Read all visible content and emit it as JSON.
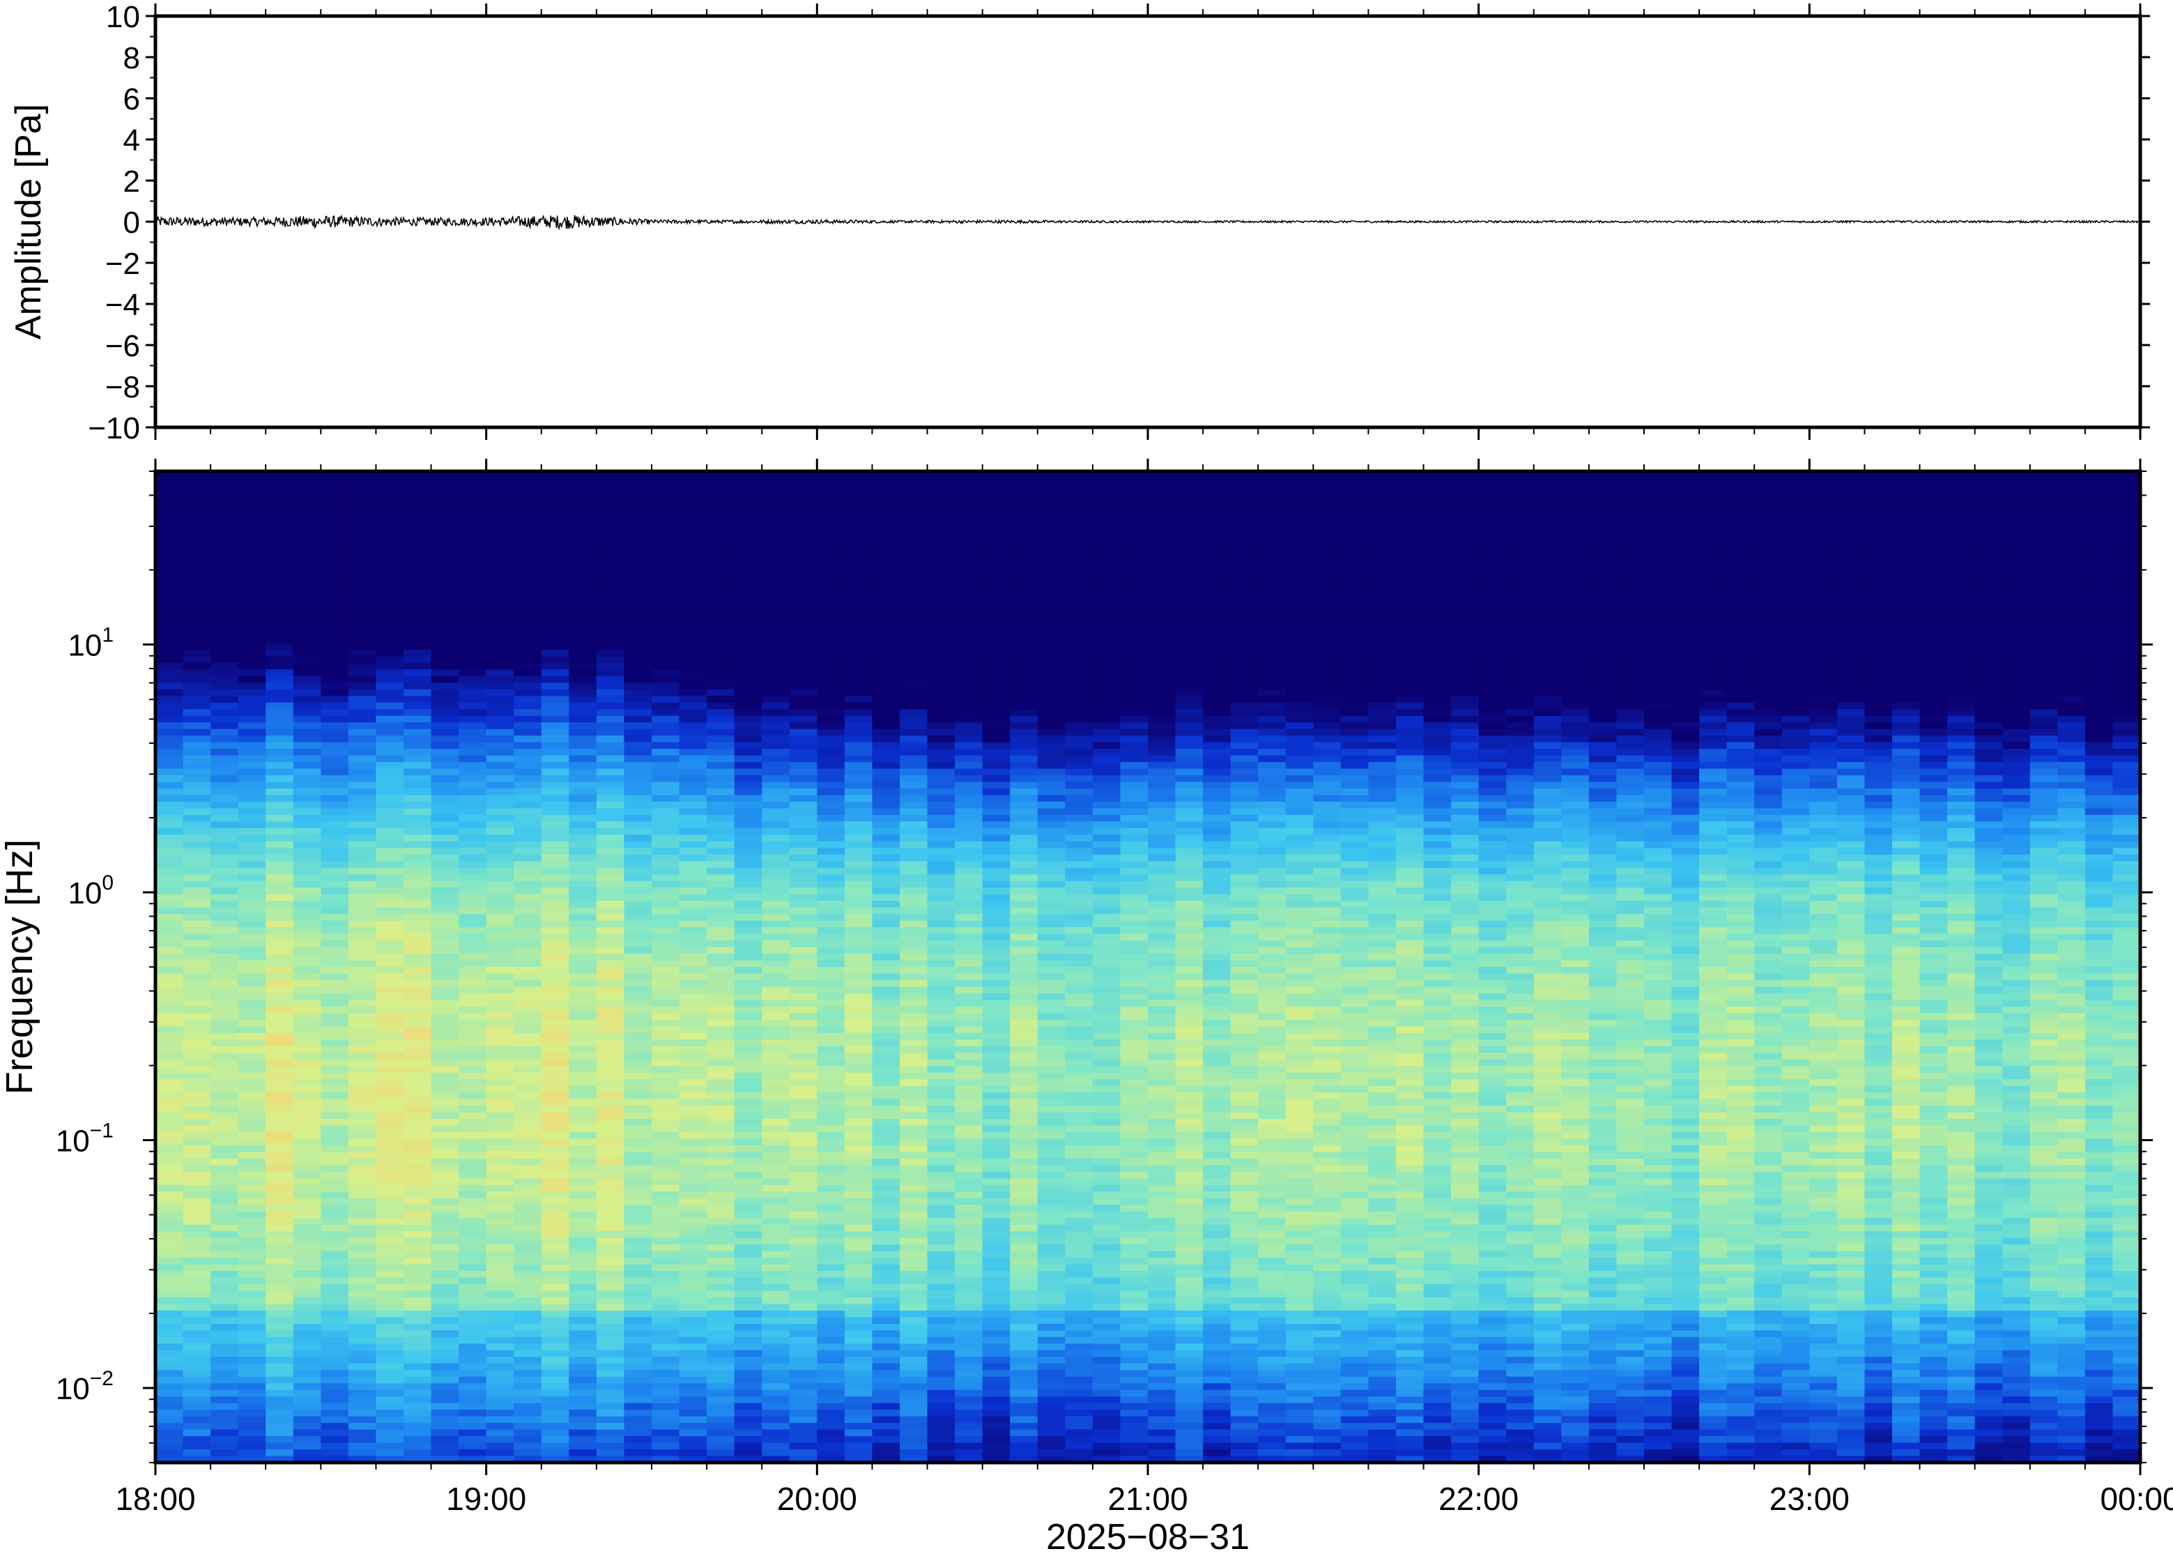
{
  "chart_data": [
    {
      "type": "line",
      "panel": "waveform",
      "ylabel": "Amplitude [Pa]",
      "ylim": [
        -10,
        10
      ],
      "yticks": [
        10,
        8,
        6,
        4,
        2,
        0,
        -2,
        -4,
        -6,
        -8,
        -10
      ],
      "ytick_labels": [
        "10",
        "8",
        "6",
        "4",
        "2",
        "0",
        "−2",
        "−4",
        "−6",
        "−8",
        "−10"
      ],
      "x_start": "18:00",
      "x_end": "00:00",
      "trace_color": "#000000",
      "series": [
        {
          "x": [
            "18:00",
            "18:15",
            "18:30",
            "18:45",
            "19:00",
            "19:15",
            "19:30",
            "19:45",
            "20:00",
            "20:15",
            "20:30",
            "20:45",
            "21:00",
            "21:15",
            "21:30",
            "21:45",
            "22:00",
            "22:15",
            "22:30",
            "22:45",
            "23:00",
            "23:15",
            "23:30",
            "23:45",
            "00:00"
          ],
          "envelope": [
            0.25,
            0.2,
            0.3,
            0.2,
            0.2,
            0.35,
            0.1,
            0.08,
            0.1,
            0.06,
            0.08,
            0.06,
            0.05,
            0.05,
            0.05,
            0.05,
            0.05,
            0.05,
            0.05,
            0.05,
            0.05,
            0.05,
            0.05,
            0.05,
            0.05
          ]
        }
      ]
    },
    {
      "type": "heatmap",
      "panel": "spectrogram",
      "ylabel": "Frequency [Hz]",
      "xlabel": "2025−08−31",
      "y_scale": "log",
      "ylim": [
        0.005,
        50
      ],
      "yticks": [
        {
          "base": "10",
          "exp": "1",
          "value": 10
        },
        {
          "base": "10",
          "exp": "0",
          "value": 1
        },
        {
          "base": "10",
          "exp": "−1",
          "value": 0.1
        },
        {
          "base": "10",
          "exp": "−2",
          "value": 0.01
        }
      ],
      "xticks": [
        "18:00",
        "19:00",
        "20:00",
        "21:00",
        "22:00",
        "23:00",
        "00:00"
      ],
      "colormap": [
        "#0b006f",
        "#0a30d0",
        "#1f8af0",
        "#3dc6f0",
        "#7fe6c8",
        "#d8f08a",
        "#f8d070"
      ],
      "time_columns": 72,
      "notes_visible": "noise-floor high before 19:30, lower afterwards"
    }
  ]
}
